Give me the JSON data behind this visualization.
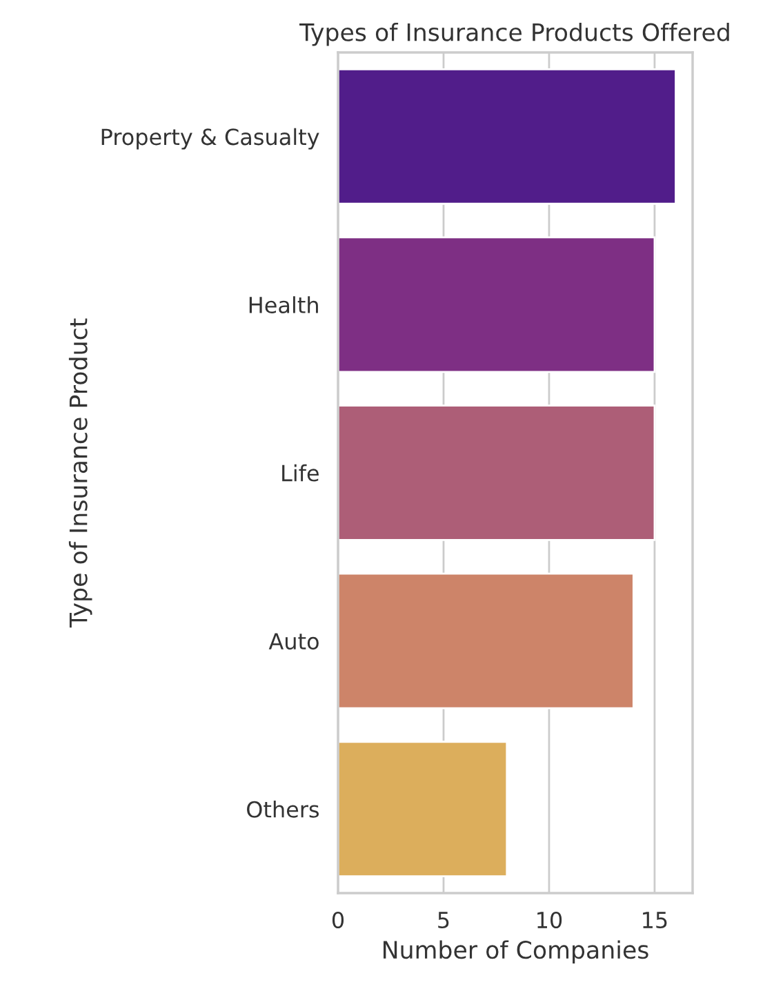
{
  "chart_data": {
    "type": "bar",
    "orientation": "horizontal",
    "title": "Types of Insurance Products Offered",
    "xlabel": "Number of Companies",
    "ylabel": "Type of Insurance Product",
    "categories": [
      "Property & Casualty",
      "Health",
      "Life",
      "Auto",
      "Others"
    ],
    "values": [
      16,
      15,
      15,
      14,
      8
    ],
    "colors": [
      "#511d8a",
      "#7e2f84",
      "#ad5e77",
      "#cd8469",
      "#dcae5c"
    ],
    "xlim": [
      0,
      16.8
    ],
    "xticks": [
      0,
      5,
      10,
      15
    ],
    "grid": "x"
  }
}
